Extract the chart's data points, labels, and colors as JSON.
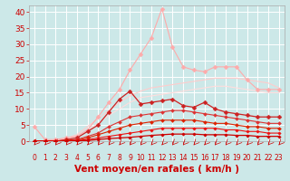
{
  "title": "",
  "xlabel": "Vent moyen/en rafales ( km/h )",
  "ylabel": "",
  "background_color": "#cce8e8",
  "grid_color": "#ffffff",
  "xlim": [
    -0.5,
    23.5
  ],
  "ylim": [
    0,
    42
  ],
  "xticks": [
    0,
    1,
    2,
    3,
    4,
    5,
    6,
    7,
    8,
    9,
    10,
    11,
    12,
    13,
    14,
    15,
    16,
    17,
    18,
    19,
    20,
    21,
    22,
    23
  ],
  "yticks": [
    0,
    5,
    10,
    15,
    20,
    25,
    30,
    35,
    40
  ],
  "series": [
    {
      "color": "#ffaaaa",
      "linewidth": 0.8,
      "marker": "D",
      "markersize": 2.5,
      "data": [
        4.5,
        0.5,
        0.5,
        1.0,
        1.5,
        3.5,
        7.5,
        12.0,
        16.0,
        22.0,
        27.0,
        32.0,
        41.0,
        29.0,
        23.0,
        22.0,
        21.5,
        23.0,
        23.0,
        23.0,
        19.0,
        16.0,
        16.0,
        16.0
      ]
    },
    {
      "color": "#ffcccc",
      "linewidth": 0.8,
      "marker": null,
      "markersize": 0,
      "data": [
        0.0,
        0.0,
        0.5,
        1.0,
        2.0,
        4.5,
        7.0,
        9.5,
        12.0,
        14.0,
        15.5,
        16.5,
        17.0,
        17.5,
        18.0,
        18.5,
        19.0,
        19.5,
        19.5,
        19.5,
        19.0,
        18.5,
        18.0,
        16.5
      ]
    },
    {
      "color": "#ffdddd",
      "linewidth": 0.8,
      "marker": null,
      "markersize": 0,
      "data": [
        0.0,
        0.0,
        0.3,
        0.7,
        1.5,
        3.5,
        5.5,
        8.0,
        10.0,
        12.0,
        13.5,
        14.0,
        14.5,
        15.0,
        15.5,
        16.0,
        16.5,
        17.0,
        17.0,
        16.5,
        16.0,
        15.5,
        15.0,
        15.0
      ]
    },
    {
      "color": "#cc2222",
      "linewidth": 0.9,
      "marker": "D",
      "markersize": 2.5,
      "data": [
        0.0,
        0.0,
        0.0,
        0.5,
        1.0,
        3.0,
        5.0,
        9.0,
        13.0,
        15.5,
        11.5,
        12.0,
        12.5,
        13.0,
        11.0,
        10.5,
        12.0,
        10.0,
        9.0,
        8.5,
        8.0,
        7.5,
        7.5,
        7.5
      ]
    },
    {
      "color": "#dd3333",
      "linewidth": 0.8,
      "marker": "D",
      "markersize": 2.0,
      "data": [
        0.0,
        0.0,
        0.0,
        0.3,
        0.5,
        1.5,
        2.5,
        4.5,
        6.0,
        7.5,
        8.0,
        8.5,
        9.0,
        9.5,
        9.5,
        9.0,
        8.5,
        8.0,
        7.5,
        7.0,
        6.5,
        6.0,
        5.5,
        5.5
      ]
    },
    {
      "color": "#dd2200",
      "linewidth": 0.8,
      "marker": "D",
      "markersize": 2.0,
      "data": [
        0.0,
        0.0,
        0.0,
        0.2,
        0.3,
        1.0,
        2.0,
        3.0,
        4.0,
        5.0,
        5.5,
        6.0,
        6.5,
        6.5,
        6.5,
        6.5,
        6.0,
        5.5,
        5.5,
        5.0,
        4.5,
        4.5,
        4.0,
        4.0
      ]
    },
    {
      "color": "#ee1111",
      "linewidth": 0.8,
      "marker": "D",
      "markersize": 1.8,
      "data": [
        0.0,
        0.0,
        0.0,
        0.1,
        0.2,
        0.5,
        1.0,
        1.5,
        2.0,
        2.5,
        3.0,
        3.5,
        4.0,
        4.0,
        4.0,
        4.0,
        4.0,
        4.0,
        3.5,
        3.5,
        3.0,
        3.0,
        2.5,
        2.5
      ]
    },
    {
      "color": "#cc0000",
      "linewidth": 0.9,
      "marker": "D",
      "markersize": 1.8,
      "data": [
        0.0,
        0.0,
        0.0,
        0.0,
        0.1,
        0.2,
        0.5,
        0.8,
        1.0,
        1.2,
        1.5,
        1.8,
        2.0,
        2.2,
        2.2,
        2.2,
        2.0,
        2.0,
        2.0,
        1.8,
        1.8,
        1.5,
        1.5,
        1.5
      ]
    }
  ],
  "xlabel_color": "#cc0000",
  "xlabel_fontsize": 7.5,
  "tick_color": "#cc0000",
  "ytick_fontsize": 6.5,
  "xtick_fontsize": 5.5
}
